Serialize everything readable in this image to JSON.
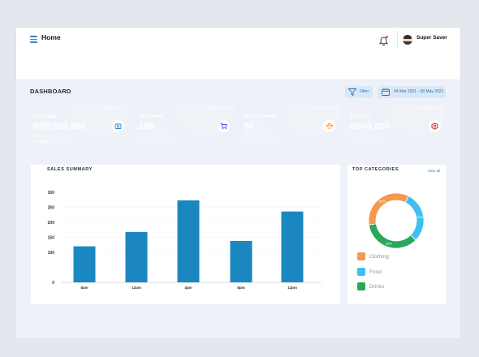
{
  "header": {
    "title": "Home",
    "user_name": "Super Saver"
  },
  "toolbar": {
    "section_title": "DASHBOARD",
    "filter_label": "Filter",
    "date_range": "04 Mar 2021 - 08 May 2021"
  },
  "cards": [
    {
      "date": "Today 10 June",
      "label": "Gross Sales",
      "value": "N50,520,000",
      "sub_label": "Net Total",
      "sub_value": "= 508,520",
      "color": "#1b87c0",
      "icon": "wallet-icon"
    },
    {
      "date": "Today 10 June",
      "label": "Total Orders",
      "value": "100",
      "color": "#554cf5",
      "icon": "cart-icon"
    },
    {
      "date": "Today 10 June",
      "label": "Total Customers",
      "value": "50",
      "color": "#f78a0b",
      "icon": "users-icon"
    },
    {
      "date": "Today 10 June",
      "label": "Total Loss",
      "value": "N500,000",
      "color": "#d2191c",
      "icon": "loss-icon"
    }
  ],
  "sales_summary": {
    "title": "SALES SUMMARY"
  },
  "top_categories": {
    "title": "TOP CATEGORIES",
    "view_all": "View all",
    "legend": [
      {
        "label": "Clothing",
        "color": "#f29a50"
      },
      {
        "label": "Food",
        "color": "#3ec0f0"
      },
      {
        "label": "Drinks",
        "color": "#27a85a"
      }
    ]
  },
  "chart_data": [
    {
      "type": "bar",
      "title": "SALES SUMMARY",
      "categories": [
        "8am",
        "12pm",
        "4pm",
        "8pm",
        "12pm"
      ],
      "values": [
        120,
        168,
        273,
        138,
        236
      ],
      "ylim": [
        0,
        300
      ],
      "yticks": [
        0,
        100,
        150,
        200,
        250,
        300
      ],
      "grid": true,
      "color": "#1b87c0"
    },
    {
      "type": "pie",
      "title": "TOP CATEGORIES",
      "donut": true,
      "labels": [
        "Clothing",
        "Food",
        "Drinks"
      ],
      "values": [
        35,
        30,
        35
      ],
      "slice_labels": [
        "35%",
        "30%",
        "35%"
      ],
      "colors": [
        "#f29a50",
        "#3ec0f0",
        "#27a85a"
      ]
    }
  ]
}
